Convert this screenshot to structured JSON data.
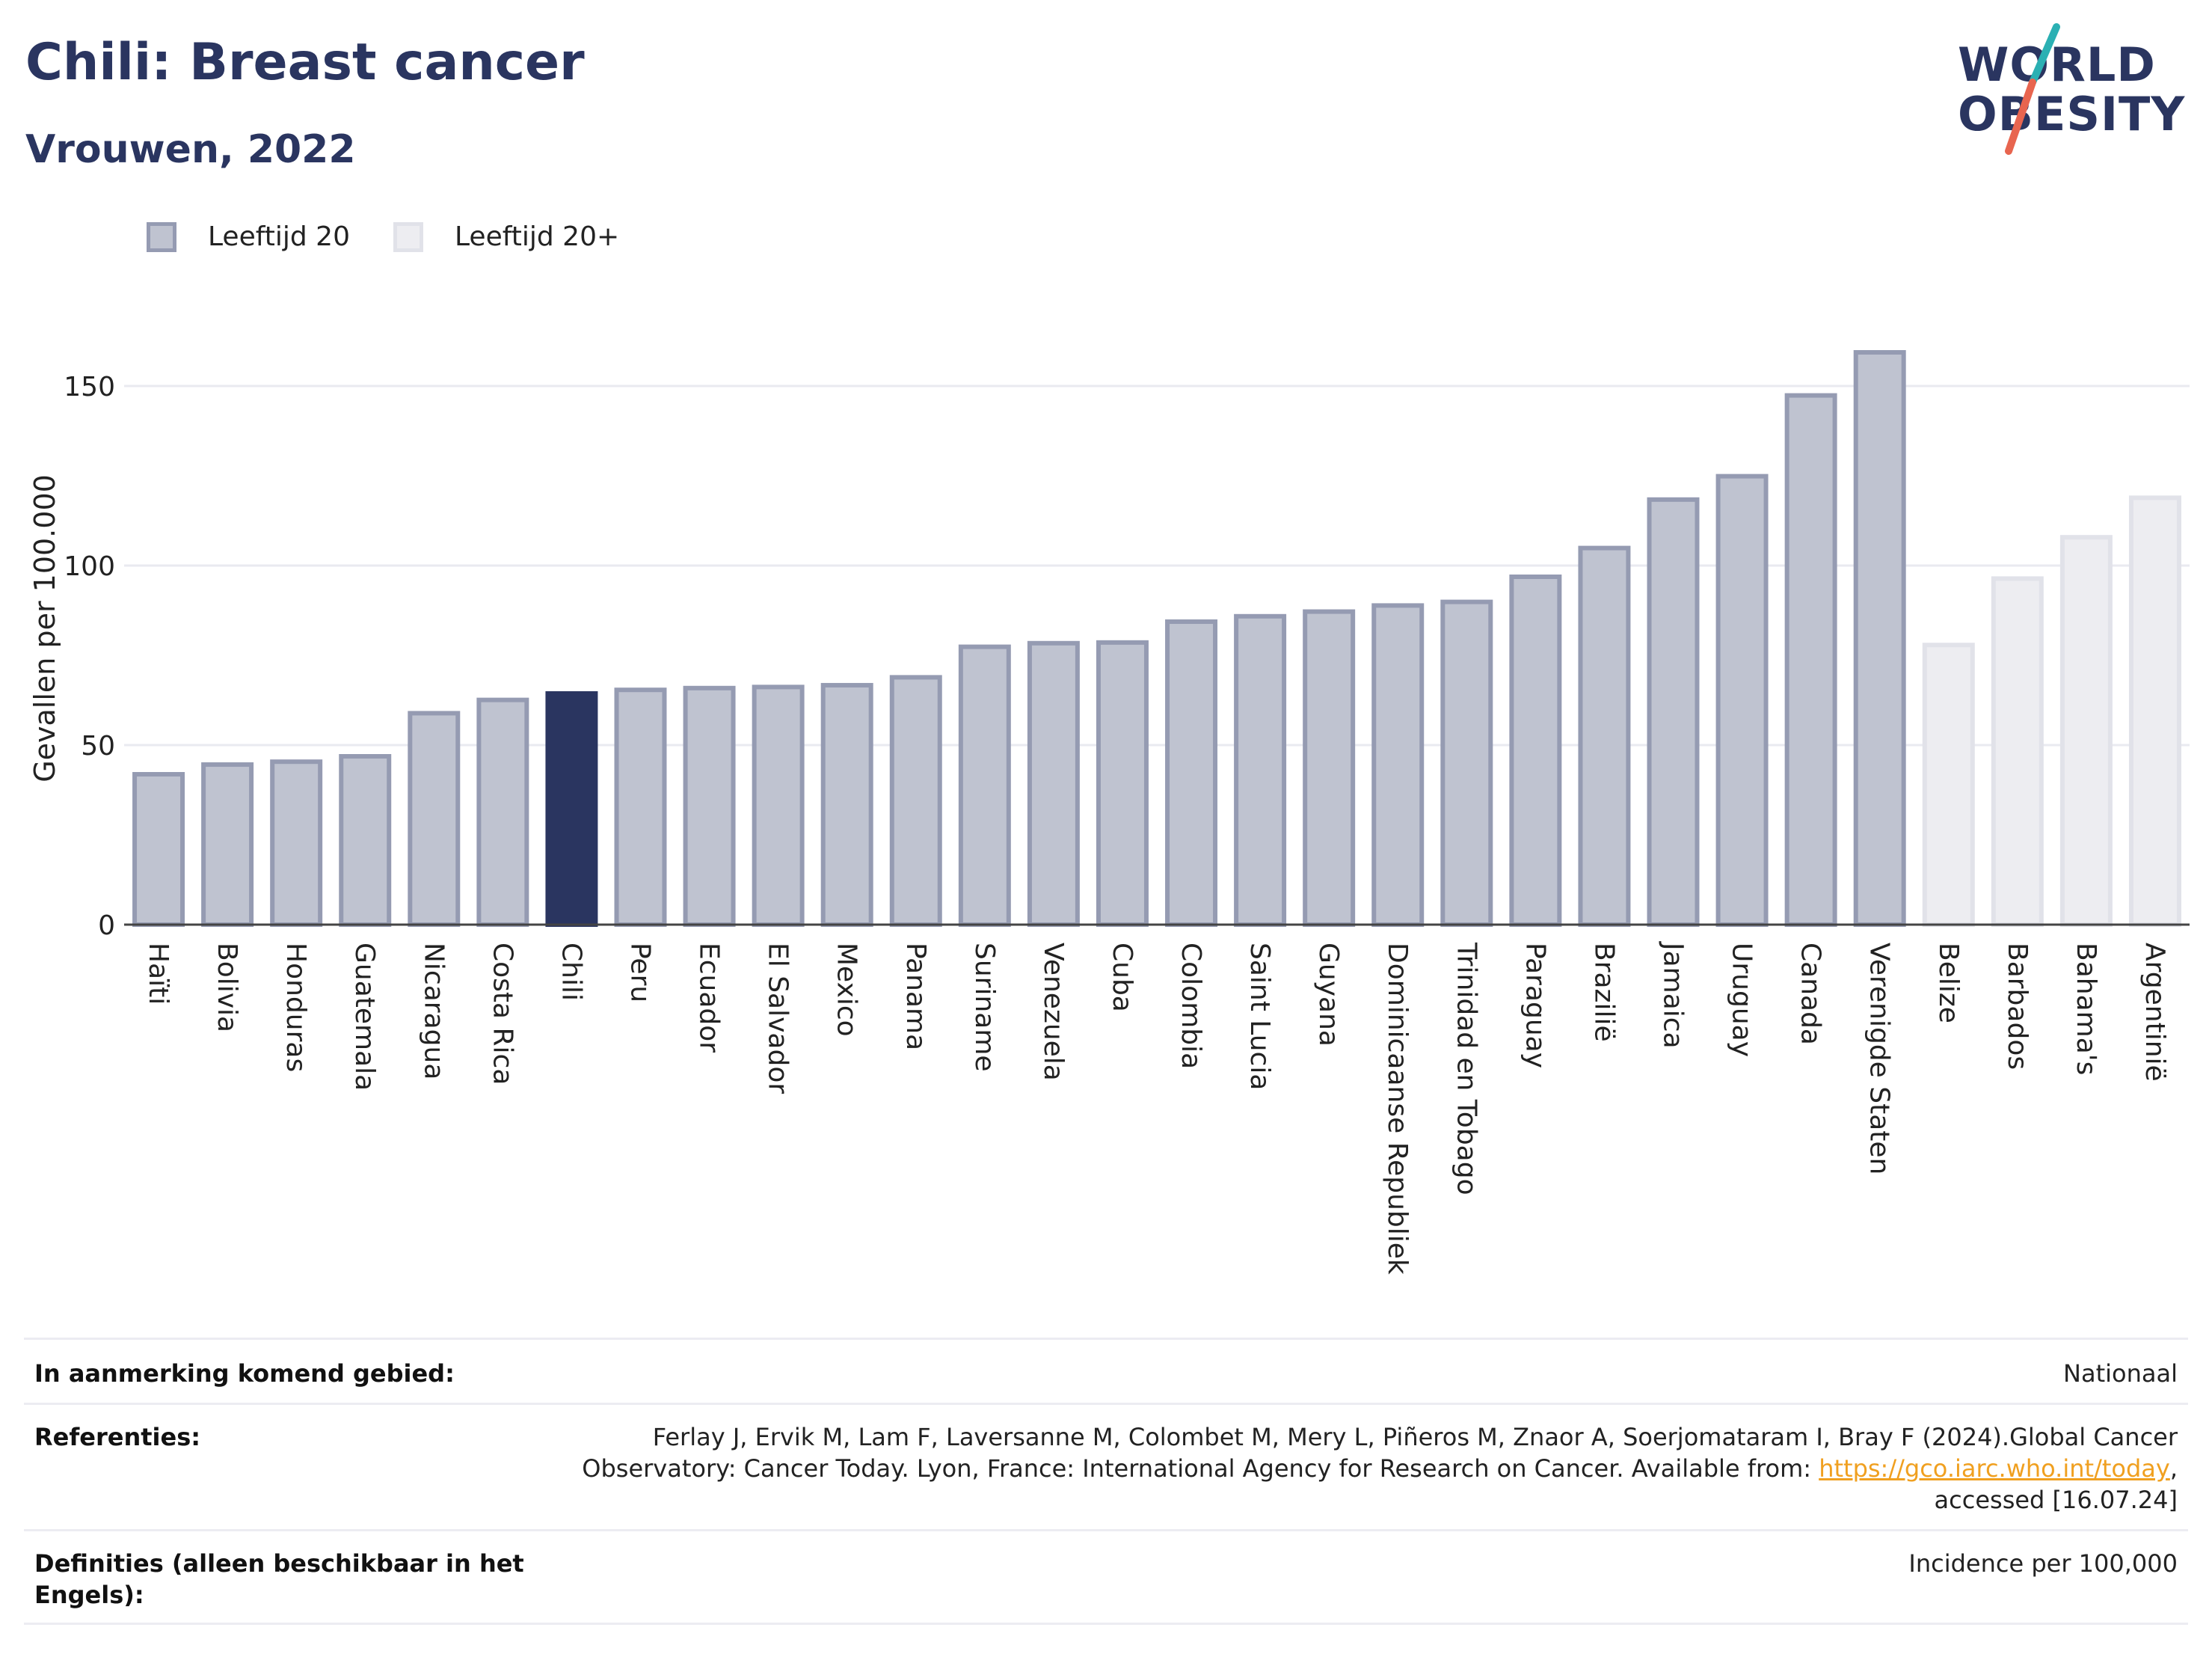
{
  "header": {
    "title": "Chili: Breast cancer",
    "subtitle": "Vrouwen, 2022"
  },
  "logo": {
    "line1": "WORLD",
    "line2": "OBESITY",
    "colors": {
      "text": "#2a3560",
      "slash_top": "#2bb0b3",
      "slash_bottom": "#e8654f"
    }
  },
  "legend": [
    {
      "label": "Leeftijd 20",
      "fill": "#bfc3d0",
      "stroke": "#959bb2"
    },
    {
      "label": "Leeftijd 20+",
      "fill": "#ededf1",
      "stroke": "#e1e2e9"
    }
  ],
  "chart_data": {
    "type": "bar",
    "ylabel": "Gevallen per 100.000",
    "ylim": [
      0,
      170
    ],
    "yticks": [
      0,
      50,
      100,
      150
    ],
    "grid": true,
    "legend_placement": "top-left",
    "highlight_category": "Chili",
    "highlight_color": "#2a3560",
    "categories": [
      "Haïti",
      "Bolivia",
      "Honduras",
      "Guatemala",
      "Nicaragua",
      "Costa Rica",
      "Chili",
      "Peru",
      "Ecuador",
      "El Salvador",
      "Mexico",
      "Panama",
      "Suriname",
      "Venezuela",
      "Cuba",
      "Colombia",
      "Saint Lucia",
      "Guyana",
      "Dominicaanse Republiek",
      "Trinidad en Tobago",
      "Paraguay",
      "Brazilië",
      "Jamaica",
      "Uruguay",
      "Canada",
      "Verenigde Staten",
      "Belize",
      "Barbados",
      "Bahama's",
      "Argentinië"
    ],
    "values": [
      42.5,
      45.2,
      46.0,
      47.5,
      59.5,
      63.2,
      65.0,
      66.0,
      66.5,
      66.8,
      67.3,
      69.5,
      78.0,
      79.0,
      79.2,
      85.0,
      86.5,
      87.8,
      89.5,
      90.5,
      97.5,
      105.5,
      119.0,
      125.5,
      148.0,
      160.0,
      78.5,
      97.0,
      108.5,
      119.5
    ],
    "series_group": [
      "Leeftijd 20",
      "Leeftijd 20",
      "Leeftijd 20",
      "Leeftijd 20",
      "Leeftijd 20",
      "Leeftijd 20",
      "Leeftijd 20",
      "Leeftijd 20",
      "Leeftijd 20",
      "Leeftijd 20",
      "Leeftijd 20",
      "Leeftijd 20",
      "Leeftijd 20",
      "Leeftijd 20",
      "Leeftijd 20",
      "Leeftijd 20",
      "Leeftijd 20",
      "Leeftijd 20",
      "Leeftijd 20",
      "Leeftijd 20",
      "Leeftijd 20",
      "Leeftijd 20",
      "Leeftijd 20",
      "Leeftijd 20",
      "Leeftijd 20",
      "Leeftijd 20",
      "Leeftijd 20+",
      "Leeftijd 20+",
      "Leeftijd 20+",
      "Leeftijd 20+"
    ]
  },
  "info": {
    "region_label": "In aanmerking komend gebied:",
    "region_value": "Nationaal",
    "ref_label": "Referenties:",
    "ref_text_1": "Ferlay J, Ervik M, Lam F, Laversanne M, Colombet M, Mery L, Piñeros M, Znaor A, Soerjomataram I, Bray F (2024).Global Cancer",
    "ref_text_2": "Observatory: Cancer Today. Lyon, France: International Agency for Research on Cancer. Available from: ",
    "ref_link": "https://gco.iarc.who.int/today",
    "ref_text_3": ",",
    "ref_text_4": "accessed [16.07.24]",
    "def_label_1": "Definities (alleen beschikbaar in het",
    "def_label_2": "Engels):",
    "def_value": "Incidence per 100,000"
  }
}
